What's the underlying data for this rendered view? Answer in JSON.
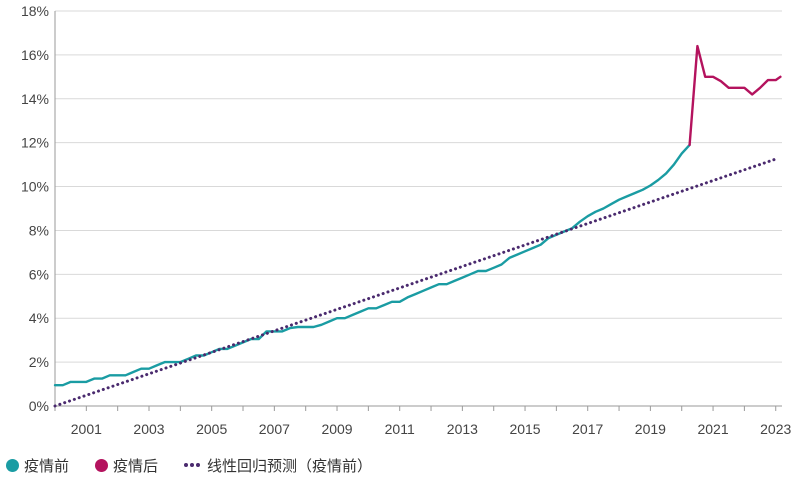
{
  "chart_data": {
    "type": "line",
    "title": "",
    "xlabel": "",
    "ylabel": "",
    "xlim": [
      2000.0,
      2023.2
    ],
    "ylim": [
      0,
      18
    ],
    "y_tick_labels": [
      "0%",
      "2%",
      "4%",
      "6%",
      "8%",
      "10%",
      "12%",
      "14%",
      "16%",
      "18%"
    ],
    "x_tick_labels": [
      "2001",
      "2003",
      "2005",
      "2007",
      "2009",
      "2011",
      "2013",
      "2015",
      "2017",
      "2019",
      "2021",
      "2023"
    ],
    "grid": "horizontal",
    "legend_position": "bottom-left",
    "series": [
      {
        "name": "疫情前",
        "color": "#1a9ca3",
        "style": "solid",
        "x": [
          2000.0,
          2000.25,
          2000.5,
          2000.75,
          2001.0,
          2001.25,
          2001.5,
          2001.75,
          2002.0,
          2002.25,
          2002.5,
          2002.75,
          2003.0,
          2003.25,
          2003.5,
          2003.75,
          2004.0,
          2004.25,
          2004.5,
          2004.75,
          2005.0,
          2005.25,
          2005.5,
          2005.75,
          2006.0,
          2006.25,
          2006.5,
          2006.75,
          2007.0,
          2007.25,
          2007.5,
          2007.75,
          2008.0,
          2008.25,
          2008.5,
          2008.75,
          2009.0,
          2009.25,
          2009.5,
          2009.75,
          2010.0,
          2010.25,
          2010.5,
          2010.75,
          2011.0,
          2011.25,
          2011.5,
          2011.75,
          2012.0,
          2012.25,
          2012.5,
          2012.75,
          2013.0,
          2013.25,
          2013.5,
          2013.75,
          2014.0,
          2014.25,
          2014.5,
          2014.75,
          2015.0,
          2015.25,
          2015.5,
          2015.75,
          2016.0,
          2016.25,
          2016.5,
          2016.75,
          2017.0,
          2017.25,
          2017.5,
          2017.75,
          2018.0,
          2018.25,
          2018.5,
          2018.75,
          2019.0,
          2019.25,
          2019.5,
          2019.75,
          2020.0,
          2020.25
        ],
        "values": [
          0.95,
          0.95,
          1.1,
          1.1,
          1.1,
          1.25,
          1.25,
          1.4,
          1.4,
          1.4,
          1.55,
          1.7,
          1.7,
          1.85,
          2.0,
          2.0,
          2.0,
          2.15,
          2.3,
          2.3,
          2.45,
          2.6,
          2.6,
          2.75,
          2.9,
          3.05,
          3.05,
          3.4,
          3.4,
          3.4,
          3.55,
          3.6,
          3.6,
          3.6,
          3.7,
          3.85,
          4.0,
          4.0,
          4.15,
          4.3,
          4.45,
          4.45,
          4.6,
          4.75,
          4.75,
          4.95,
          5.1,
          5.25,
          5.4,
          5.55,
          5.55,
          5.7,
          5.85,
          6.0,
          6.15,
          6.15,
          6.3,
          6.45,
          6.75,
          6.9,
          7.05,
          7.2,
          7.35,
          7.65,
          7.8,
          7.95,
          8.1,
          8.4,
          8.65,
          8.85,
          9.0,
          9.2,
          9.4,
          9.55,
          9.7,
          9.85,
          10.05,
          10.3,
          10.6,
          11.0,
          11.5,
          11.9
        ]
      },
      {
        "name": "疫情后",
        "color": "#b4135e",
        "style": "solid",
        "x": [
          2020.25,
          2020.5,
          2020.75,
          2021.0,
          2021.25,
          2021.5,
          2021.75,
          2022.0,
          2022.25,
          2022.5,
          2022.75,
          2023.0,
          2023.15
        ],
        "values": [
          11.9,
          16.4,
          15.0,
          15.0,
          14.8,
          14.5,
          14.5,
          14.5,
          14.2,
          14.5,
          14.85,
          14.85,
          15.0
        ]
      },
      {
        "name": "线性回归预测（疫情前）",
        "color": "#4a2a6e",
        "style": "dotted",
        "x": [
          2000.0,
          2023.0
        ],
        "values": [
          0.0,
          11.25
        ]
      }
    ]
  }
}
